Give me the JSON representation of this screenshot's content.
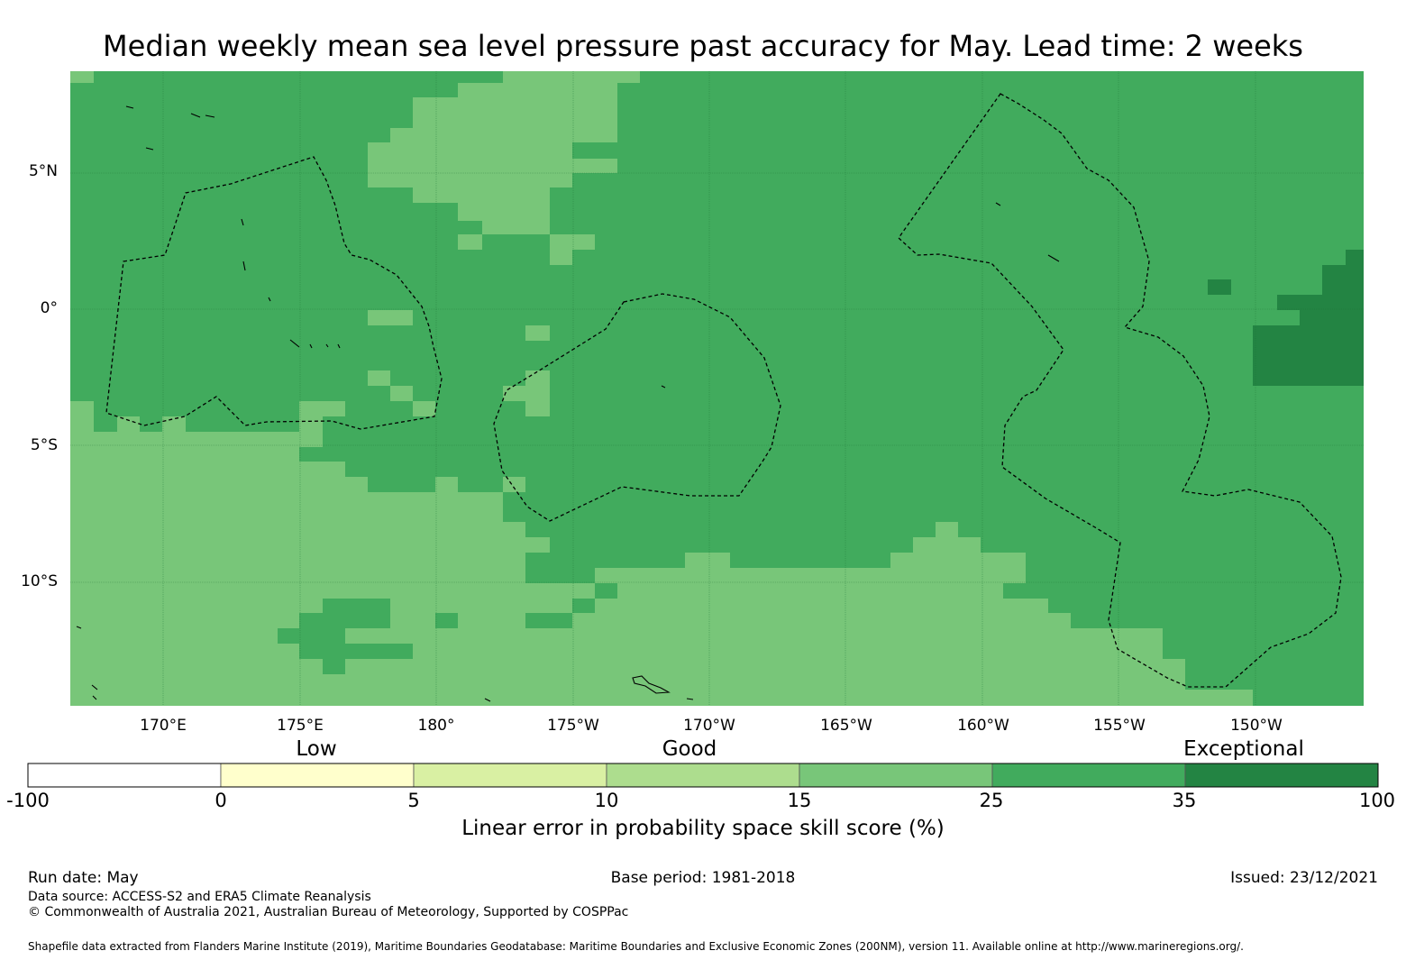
{
  "title": "Median weekly mean sea level pressure past accuracy for May. Lead time: 2 weeks",
  "axes": {
    "lat_ticks": [
      "5°N",
      "0°",
      "5°S",
      "10°S"
    ],
    "lon_ticks": [
      "170°E",
      "175°E",
      "180°",
      "175°W",
      "170°W",
      "165°W",
      "160°W",
      "155°W",
      "150°W"
    ]
  },
  "colorbar": {
    "categories": [
      "Low",
      "Good",
      "Exceptional"
    ],
    "ticks": [
      "-100",
      "0",
      "5",
      "10",
      "15",
      "25",
      "35",
      "100"
    ],
    "colors": [
      "#ffffff",
      "#ffffcc",
      "#d9f0a3",
      "#addd8e",
      "#78c679",
      "#41ab5d",
      "#238443"
    ],
    "label": "Linear error in probability space skill score (%)"
  },
  "map": {
    "colors": {
      "c15_25": "#78c679",
      "c25_35": "#41ab5d",
      "c35_100": "#238443",
      "grid": "#1a6e32",
      "boundary": "#000000"
    }
  },
  "footer": {
    "run_date": "Run date: May",
    "base_period": "Base period: 1981-2018",
    "issued": "Issued: 23/12/2021",
    "data_source": "Data source: ACCESS-S2 and ERA5 Climate Reanalysis",
    "copyright": "© Commonwealth of Australia 2021, Australian Bureau of Meteorology, Supported by COSPPac",
    "shapefile": "Shapefile data extracted from Flanders Marine Institute (2019), Maritime Boundaries Geodatabase: Maritime Boundaries and Exclusive Economic Zones (200NM), version 11. Available online at http://www.marineregions.org/."
  }
}
